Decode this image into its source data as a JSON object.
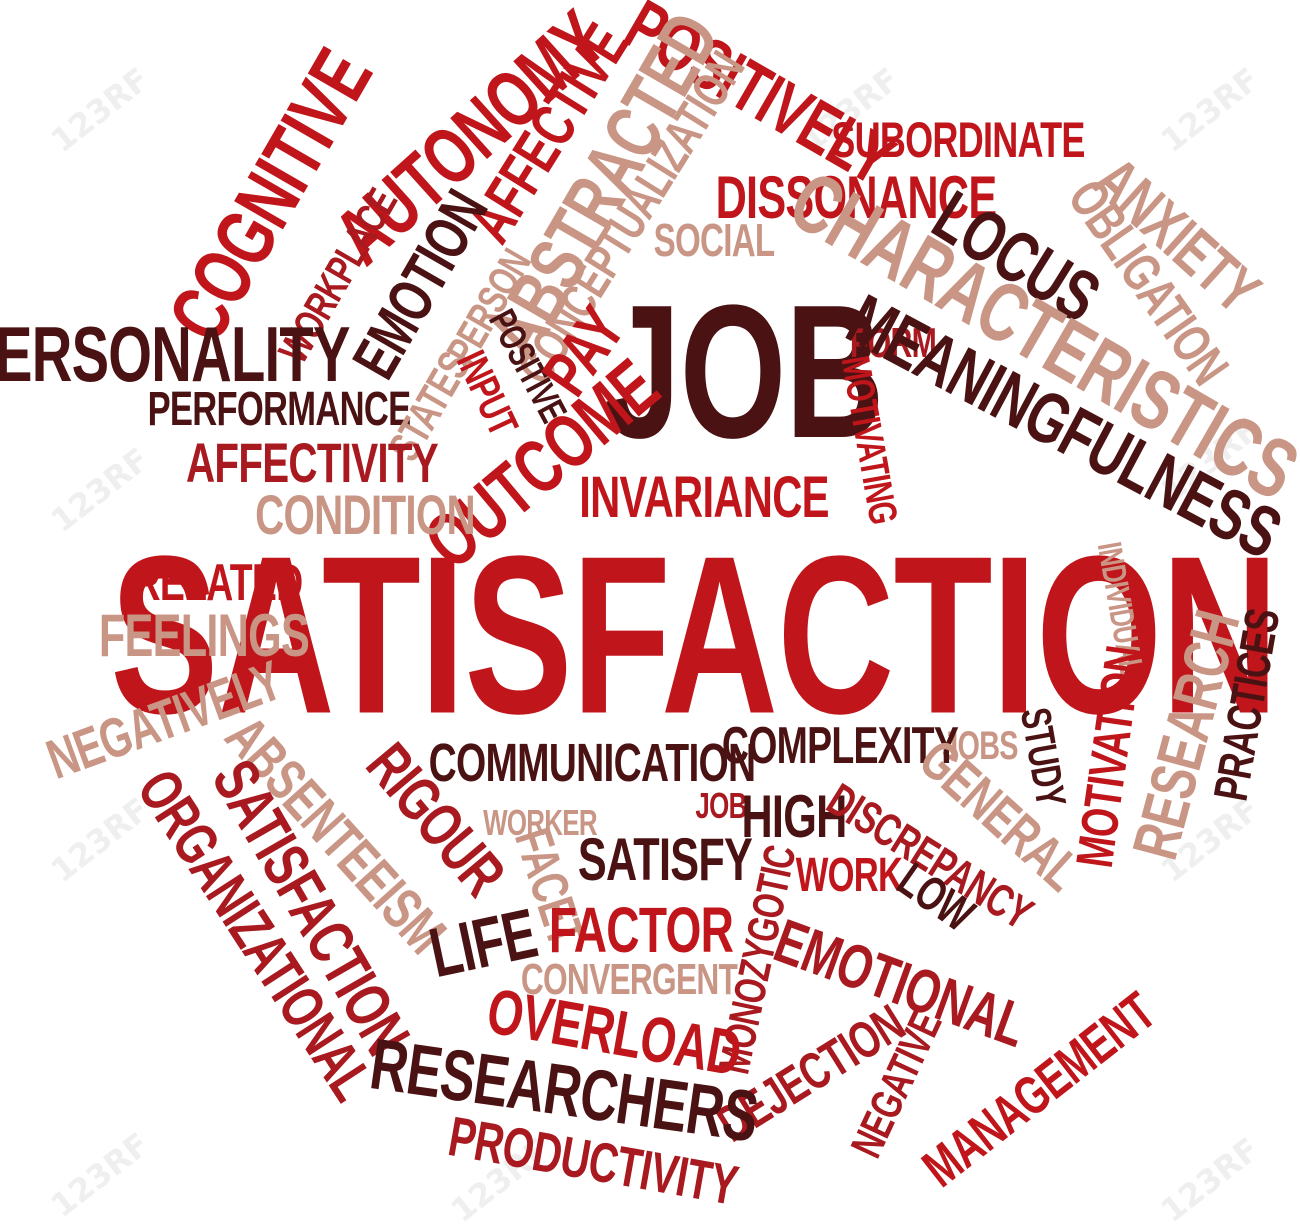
{
  "colors": {
    "dark": "#4a1212",
    "red": "#c0161b",
    "crimson": "#a81a1f",
    "tan": "#c99585",
    "background": "#ffffff"
  },
  "watermark": "123RF",
  "words": [
    {
      "text": "JOB",
      "color": "dark"
    },
    {
      "text": "SATISFACTION",
      "color": "red"
    },
    {
      "text": "POSITIVELY",
      "color": "red"
    },
    {
      "text": "SUBORDINATE",
      "color": "red"
    },
    {
      "text": "AFFECTIVE",
      "color": "red"
    },
    {
      "text": "ABSTRACTED",
      "color": "tan"
    },
    {
      "text": "AUTONOMY",
      "color": "red"
    },
    {
      "text": "CONCEPTUALIZATION",
      "color": "tan"
    },
    {
      "text": "COGNITIVE",
      "color": "red"
    },
    {
      "text": "DISSONANCE",
      "color": "red"
    },
    {
      "text": "ANXIETY",
      "color": "tan"
    },
    {
      "text": "OBLIGATION",
      "color": "tan"
    },
    {
      "text": "SOCIAL",
      "color": "tan"
    },
    {
      "text": "LOCUS",
      "color": "dark"
    },
    {
      "text": "CHARACTERISTICS",
      "color": "tan"
    },
    {
      "text": "WORKPLACE",
      "color": "crimson"
    },
    {
      "text": "EMOTION",
      "color": "dark"
    },
    {
      "text": "PERSON",
      "color": "tan"
    },
    {
      "text": "PERSONALITY",
      "color": "dark"
    },
    {
      "text": "POSITIVE",
      "color": "dark"
    },
    {
      "text": "FORM",
      "color": "crimson"
    },
    {
      "text": "MEANINGFULNESS",
      "color": "dark"
    },
    {
      "text": "PERFORMANCE",
      "color": "dark"
    },
    {
      "text": "STATES",
      "color": "tan"
    },
    {
      "text": "INPUT",
      "color": "red"
    },
    {
      "text": "PAY",
      "color": "red"
    },
    {
      "text": "MOTIVATING",
      "color": "red"
    },
    {
      "text": "AFFECTIVITY",
      "color": "crimson"
    },
    {
      "text": "OUTCOME",
      "color": "red"
    },
    {
      "text": "INVARIANCE",
      "color": "red"
    },
    {
      "text": "CONDITION",
      "color": "tan"
    },
    {
      "text": "INDIVIDUAL",
      "color": "tan"
    },
    {
      "text": "RELATED",
      "color": "red"
    },
    {
      "text": "FEELINGS",
      "color": "tan"
    },
    {
      "text": "PRACTICES",
      "color": "dark"
    },
    {
      "text": "RESEARCH",
      "color": "tan"
    },
    {
      "text": "MOTIVATION",
      "color": "red"
    },
    {
      "text": "NEGATIVELY",
      "color": "tan"
    },
    {
      "text": "JOBS",
      "color": "tan"
    },
    {
      "text": "STUDY",
      "color": "dark"
    },
    {
      "text": "COMMUNICATION",
      "color": "dark"
    },
    {
      "text": "COMPLEXITY",
      "color": "dark"
    },
    {
      "text": "ABSENTEEISM",
      "color": "tan"
    },
    {
      "text": "RIGOUR",
      "color": "crimson"
    },
    {
      "text": "WORKER",
      "color": "tan"
    },
    {
      "text": "JOB",
      "color": "crimson"
    },
    {
      "text": "HIGH",
      "color": "dark"
    },
    {
      "text": "GENERAL",
      "color": "tan"
    },
    {
      "text": "DISCREPANCY",
      "color": "crimson"
    },
    {
      "text": "SATISFACTION",
      "color": "crimson"
    },
    {
      "text": "ORGANIZATIONAL",
      "color": "crimson"
    },
    {
      "text": "FACET",
      "color": "tan"
    },
    {
      "text": "SATISFY",
      "color": "dark"
    },
    {
      "text": "MONOZYGOTIC",
      "color": "crimson"
    },
    {
      "text": "WORK",
      "color": "red"
    },
    {
      "text": "LOW",
      "color": "dark"
    },
    {
      "text": "LIFE",
      "color": "dark"
    },
    {
      "text": "FACTOR",
      "color": "red"
    },
    {
      "text": "EMOTIONAL",
      "color": "crimson"
    },
    {
      "text": "CONVERGENT",
      "color": "tan"
    },
    {
      "text": "OVERLOAD",
      "color": "red"
    },
    {
      "text": "DEJECTION",
      "color": "crimson"
    },
    {
      "text": "NEGATIVE",
      "color": "crimson"
    },
    {
      "text": "MANAGEMENT",
      "color": "red"
    },
    {
      "text": "RESEARCHERS",
      "color": "dark"
    },
    {
      "text": "PRODUCTIVITY",
      "color": "crimson"
    }
  ]
}
